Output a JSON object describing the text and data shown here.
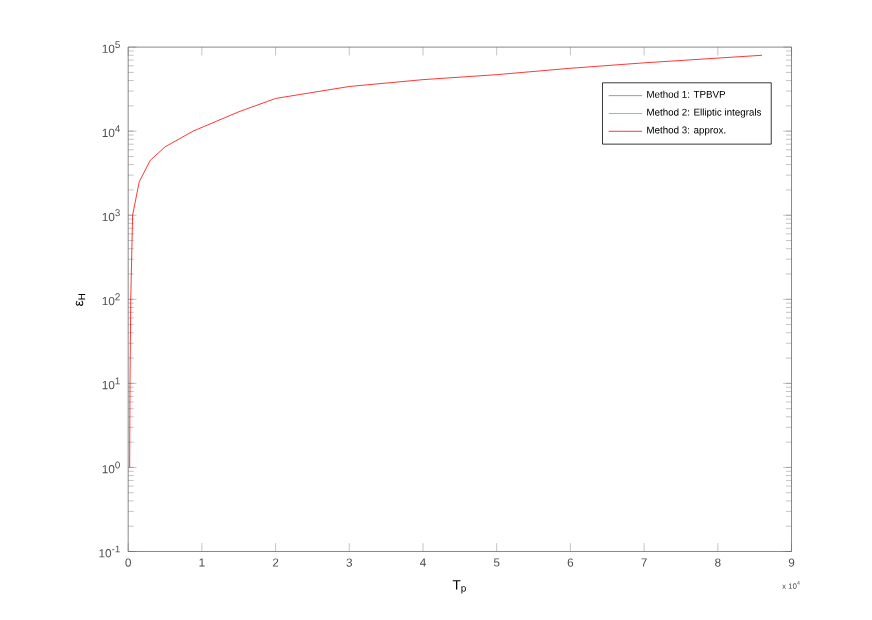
{
  "chart_data": {
    "type": "line",
    "xlabel": "T$_{p}$",
    "ylabel": "ε$_{H}$",
    "log": "y",
    "legend": "top right",
    "line_style": "solid",
    "xlim": [
      0,
      9
    ],
    "xticks": [
      0,
      1,
      2,
      3,
      4,
      5,
      6,
      7,
      8,
      9
    ],
    "ylim": [
      0.1,
      100000
    ],
    "yticks": [
      {
        "value": 0.1,
        "label": "10$^{-1}$"
      },
      {
        "value": 1,
        "label": "10$^{0}$"
      },
      {
        "value": 10,
        "label": "10$^{1}$"
      },
      {
        "value": 100,
        "label": "10$^{2}$"
      },
      {
        "value": 1000,
        "label": "10$^{3}$"
      },
      {
        "value": 10000,
        "label": "10$^{4}$"
      },
      {
        "value": 100000,
        "label": "10$^{5}$"
      }
    ],
    "annotations": [
      "x 10$^{4}$"
    ],
    "x": [
      0.02,
      0.025,
      0.035,
      0.06,
      0.15,
      0.3,
      0.5,
      0.88,
      1.5,
      2,
      3,
      4,
      5,
      6,
      7,
      8,
      8.6
    ],
    "series": [
      {
        "name": "Method 1: TPBVP",
        "color": "#808080",
        "values": [
          null,
          null,
          null,
          null,
          null,
          null,
          null,
          null,
          null,
          null,
          null,
          null,
          null,
          null,
          null,
          null,
          null
        ]
      },
      {
        "name": "Method 2: Elliptic integrals",
        "color": "#00ff00",
        "values": [
          null,
          null,
          null,
          null,
          null,
          null,
          null,
          null,
          null,
          null,
          null,
          null,
          null,
          null,
          null,
          null,
          null
        ]
      },
      {
        "name": "Method 3: approx.",
        "color": "#ff0000",
        "values": [
          1,
          10,
          100,
          1000,
          2500,
          4500,
          6500,
          10000,
          17000,
          24500,
          34000,
          41000,
          47000,
          56000,
          65000,
          74000,
          80000
        ]
      }
    ]
  }
}
